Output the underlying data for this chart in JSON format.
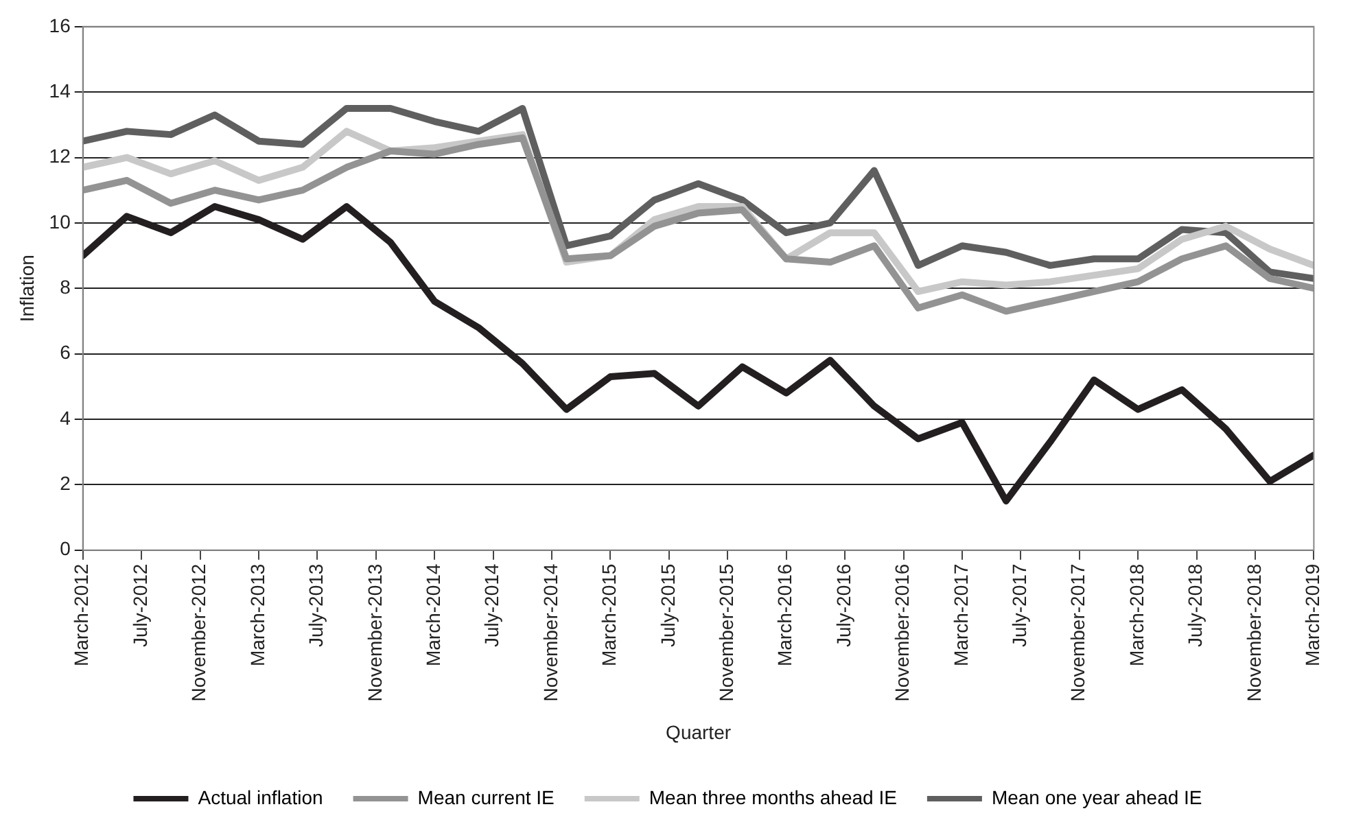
{
  "chart_data": {
    "type": "line",
    "xlabel": "Quarter",
    "ylabel": "Inflation",
    "x": [
      "2012-03",
      "2012-06",
      "2012-09",
      "2012-12",
      "2013-03",
      "2013-06",
      "2013-09",
      "2013-12",
      "2014-03",
      "2014-06",
      "2014-09",
      "2014-12",
      "2015-03",
      "2015-06",
      "2015-09",
      "2015-12",
      "2016-03",
      "2016-06",
      "2016-09",
      "2016-12",
      "2017-03",
      "2017-06",
      "2017-09",
      "2017-12",
      "2018-03",
      "2018-06",
      "2018-09",
      "2018-12",
      "2019-03"
    ],
    "series": [
      {
        "name": "Actual inflation",
        "color": "#231f20",
        "values": [
          9.0,
          10.2,
          9.7,
          10.5,
          10.1,
          9.5,
          10.5,
          9.4,
          7.6,
          6.8,
          5.7,
          4.3,
          5.3,
          5.4,
          4.4,
          5.6,
          4.8,
          5.8,
          4.4,
          3.4,
          3.9,
          1.5,
          3.3,
          5.2,
          4.3,
          4.9,
          3.7,
          2.1,
          2.9
        ]
      },
      {
        "name": "Mean current IE",
        "color": "#939393",
        "values": [
          11.0,
          11.3,
          10.6,
          11.0,
          10.7,
          11.0,
          11.7,
          12.2,
          12.1,
          12.4,
          12.6,
          8.9,
          9.0,
          9.9,
          10.3,
          10.4,
          8.9,
          8.8,
          9.3,
          7.4,
          7.8,
          7.3,
          7.6,
          7.9,
          8.2,
          8.9,
          9.3,
          8.3,
          8.0
        ]
      },
      {
        "name": "Mean three months ahead IE",
        "color": "#c8c8c8",
        "values": [
          11.7,
          12.0,
          11.5,
          11.9,
          11.3,
          11.7,
          12.8,
          12.2,
          12.3,
          12.5,
          12.7,
          8.8,
          9.0,
          10.1,
          10.5,
          10.5,
          8.9,
          9.7,
          9.7,
          7.9,
          8.2,
          8.1,
          8.2,
          8.4,
          8.6,
          9.5,
          9.9,
          9.2,
          8.7
        ]
      },
      {
        "name": "Mean one year ahead IE",
        "color": "#5f5f5f",
        "values": [
          12.5,
          12.8,
          12.7,
          13.3,
          12.5,
          12.4,
          13.5,
          13.5,
          13.1,
          12.8,
          13.5,
          9.3,
          9.6,
          10.7,
          11.2,
          10.7,
          9.7,
          10.0,
          11.6,
          8.7,
          9.3,
          9.1,
          8.7,
          8.9,
          8.9,
          9.8,
          9.7,
          8.5,
          8.3
        ]
      }
    ],
    "xlim": [
      "2012-03",
      "2019-03"
    ],
    "xticks": [
      {
        "value": "2012-03",
        "label": "March-2012"
      },
      {
        "value": "2012-07",
        "label": "July-2012"
      },
      {
        "value": "2012-11",
        "label": "November-2012"
      },
      {
        "value": "2013-03",
        "label": "March-2013"
      },
      {
        "value": "2013-07",
        "label": "July-2013"
      },
      {
        "value": "2013-11",
        "label": "November-2013"
      },
      {
        "value": "2014-03",
        "label": "March-2014"
      },
      {
        "value": "2014-07",
        "label": "July-2014"
      },
      {
        "value": "2014-11",
        "label": "November-2014"
      },
      {
        "value": "2015-03",
        "label": "March-2015"
      },
      {
        "value": "2015-07",
        "label": "July-2015"
      },
      {
        "value": "2015-11",
        "label": "November-2015"
      },
      {
        "value": "2016-03",
        "label": "March-2016"
      },
      {
        "value": "2016-07",
        "label": "July-2016"
      },
      {
        "value": "2016-11",
        "label": "November-2016"
      },
      {
        "value": "2017-03",
        "label": "March-2017"
      },
      {
        "value": "2017-07",
        "label": "July-2017"
      },
      {
        "value": "2017-11",
        "label": "November-2017"
      },
      {
        "value": "2018-03",
        "label": "March-2018"
      },
      {
        "value": "2018-07",
        "label": "July-2018"
      },
      {
        "value": "2018-11",
        "label": "November-2018"
      },
      {
        "value": "2019-03",
        "label": "March-2019"
      }
    ],
    "ylim": [
      0,
      16
    ],
    "yticks": [
      0,
      2,
      4,
      6,
      8,
      10,
      12,
      14,
      16
    ],
    "grid": "y",
    "legend": "bottom",
    "marker": "none",
    "line_style": "solid"
  }
}
